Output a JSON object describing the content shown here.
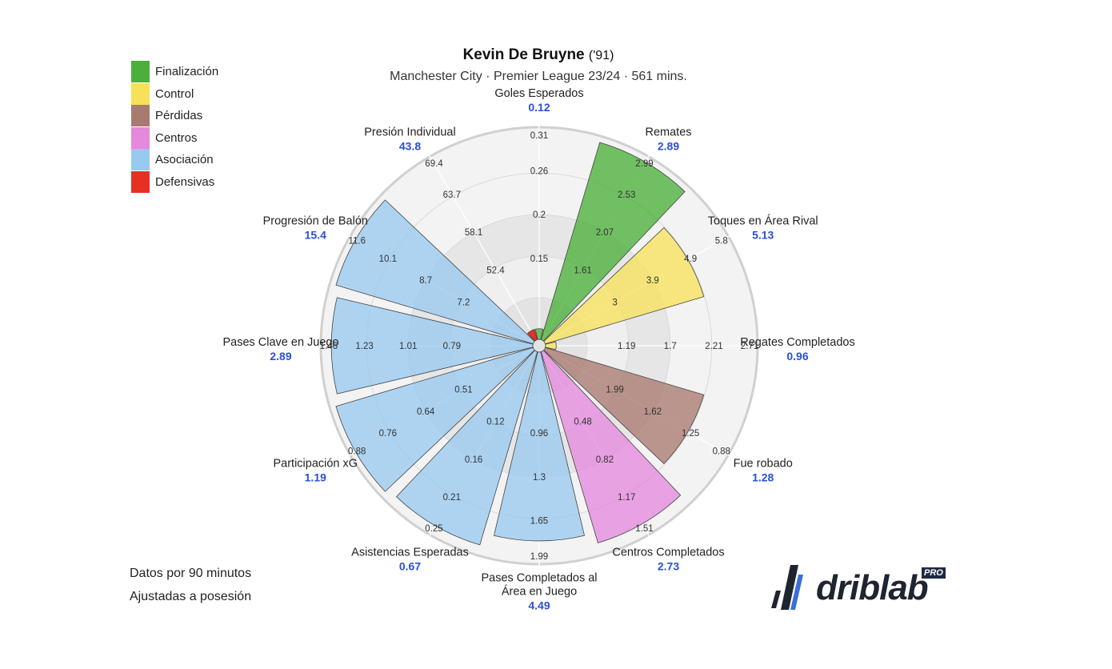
{
  "title": {
    "name": "Kevin De Bruyne",
    "suffix": "('91)"
  },
  "subtitle": "Manchester City · Premier League 23/24 · 561 mins.",
  "legend": [
    {
      "label": "Finalización",
      "color": "#4caf3a"
    },
    {
      "label": "Control",
      "color": "#f7e15b"
    },
    {
      "label": "Pérdidas",
      "color": "#a97a70"
    },
    {
      "label": "Centros",
      "color": "#e489dc"
    },
    {
      "label": "Asociación",
      "color": "#98c9ef"
    },
    {
      "label": "Defensivas",
      "color": "#e63023"
    }
  ],
  "footnotes": {
    "line1": "Datos por 90 minutos",
    "line2": "Ajustadas a posesión"
  },
  "logo": {
    "text": "driblab",
    "badge": "PRO"
  },
  "chart_data": {
    "type": "polar-bar",
    "metrics": [
      {
        "label": "Goles Esperados",
        "value": "0.12",
        "group": "Finalización",
        "fraction": 0.05,
        "ticks": [
          "0.15",
          "0.2",
          "0.26",
          "0.31"
        ]
      },
      {
        "label": "Remates",
        "value": "2.89",
        "group": "Finalización",
        "fraction": 0.97,
        "ticks": [
          "1.61",
          "2.07",
          "2.53",
          "2.99"
        ]
      },
      {
        "label": "Toques en Área Rival",
        "value": "5.13",
        "group": "Control",
        "fraction": 0.78,
        "ticks": [
          "3",
          "3.9",
          "4.9",
          "5.8"
        ]
      },
      {
        "label": "Regates Completados",
        "value": "0.96",
        "group": "Control",
        "fraction": 0.05,
        "ticks": [
          "1.19",
          "1.7",
          "2.21",
          "2.71"
        ]
      },
      {
        "label": "Fue robado",
        "value": "1.28",
        "group": "Pérdidas",
        "fraction": 0.78,
        "ticks": [
          "1.99",
          "1.62",
          "1.25",
          "0.88"
        ]
      },
      {
        "label": "Centros Completados",
        "value": "2.73",
        "group": "Centros",
        "fraction": 0.94,
        "ticks": [
          "0.48",
          "0.82",
          "1.17",
          "1.51"
        ]
      },
      {
        "label": "Pases Completados al Área en Juego",
        "label_lines": [
          "Pases Completados al",
          "Área en Juego"
        ],
        "value": "4.49",
        "group": "Asociación",
        "fraction": 0.89,
        "ticks": [
          "0.96",
          "1.3",
          "1.65",
          "1.99"
        ]
      },
      {
        "label": "Asistencias Esperadas",
        "value": "0.67",
        "group": "Asociación",
        "fraction": 0.95,
        "ticks": [
          "0.12",
          "0.16",
          "0.21",
          "0.25"
        ]
      },
      {
        "label": "Participación xG",
        "value": "1.19",
        "group": "Asociación",
        "fraction": 0.97,
        "ticks": [
          "0.51",
          "0.64",
          "0.76",
          "0.88"
        ]
      },
      {
        "label": "Pases Clave en Juego",
        "value": "2.89",
        "group": "Asociación",
        "fraction": 0.95,
        "ticks": [
          "0.79",
          "1.01",
          "1.23",
          "1.46"
        ]
      },
      {
        "label": "Progresión de Balón",
        "value": "15.4",
        "group": "Asociación",
        "fraction": 0.97,
        "ticks": [
          "7.2",
          "8.7",
          "10.1",
          "11.6"
        ]
      },
      {
        "label": "Presión Individual",
        "value": "43.8",
        "group": "Defensivas",
        "fraction": 0.05,
        "ticks": [
          "52.4",
          "58.1",
          "63.7",
          "69.4"
        ]
      }
    ]
  }
}
